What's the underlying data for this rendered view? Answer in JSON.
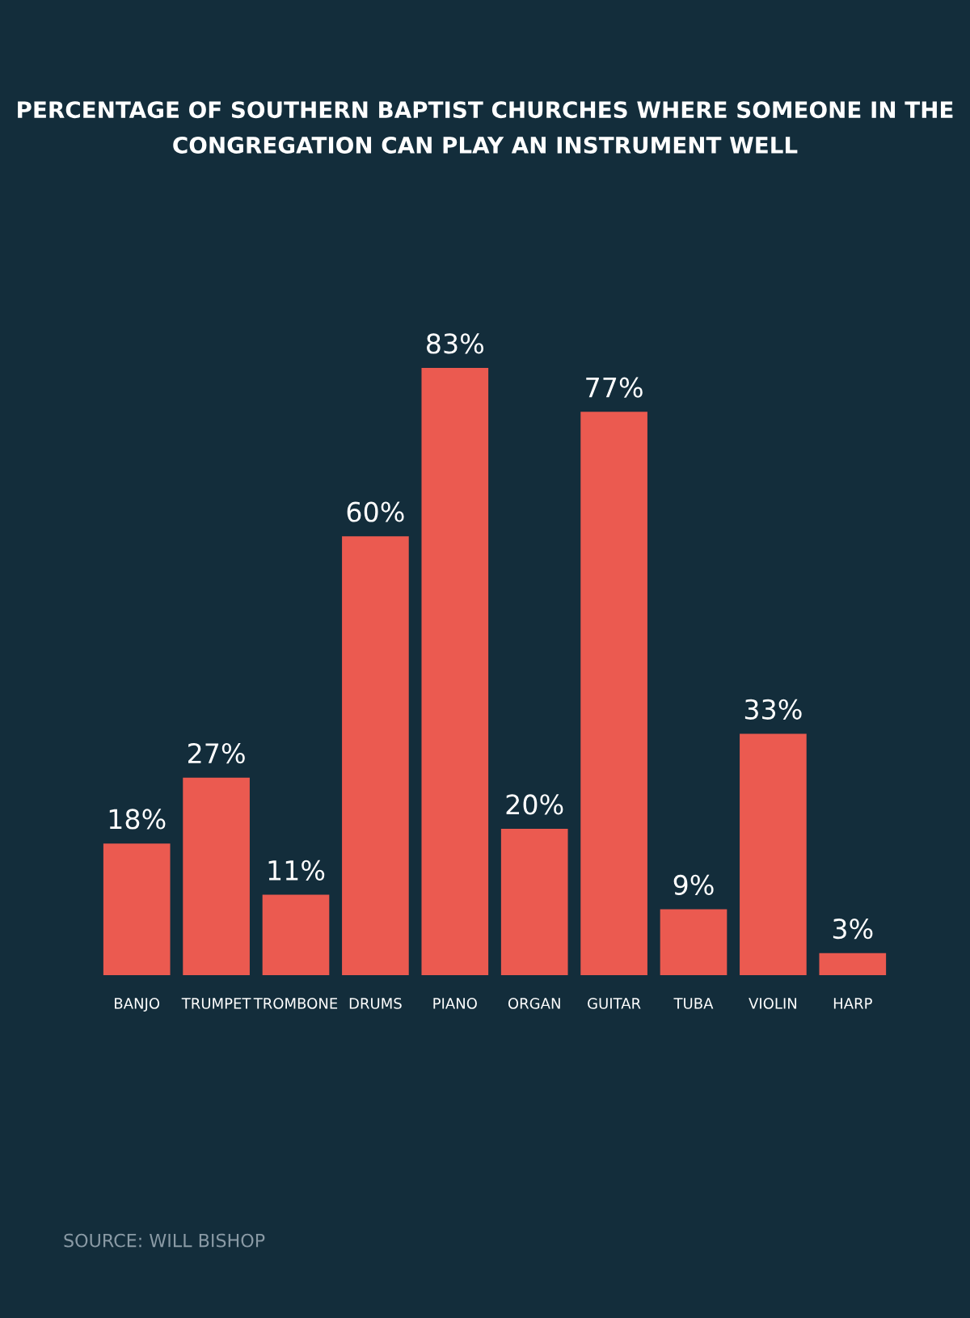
{
  "chart_data": {
    "type": "bar",
    "title": "PERCENTAGE OF SOUTHERN BAPTIST CHURCHES WHERE SOMEONE IN THE CONGREGATION CAN PLAY AN INSTRUMENT WELL",
    "categories": [
      "BANJO",
      "TRUMPET",
      "TROMBONE",
      "DRUMS",
      "PIANO",
      "ORGAN",
      "GUITAR",
      "TUBA",
      "VIOLIN",
      "HARP"
    ],
    "values": [
      18,
      27,
      11,
      60,
      83,
      20,
      77,
      9,
      33,
      3
    ],
    "value_labels": [
      "18%",
      "27%",
      "11%",
      "60%",
      "83%",
      "20%",
      "77%",
      "9%",
      "33%",
      "3%"
    ],
    "color": "#eb5a50",
    "annotations": [
      "SOURCE: WILL BISHOP"
    ],
    "grid": false,
    "legend": false
  }
}
